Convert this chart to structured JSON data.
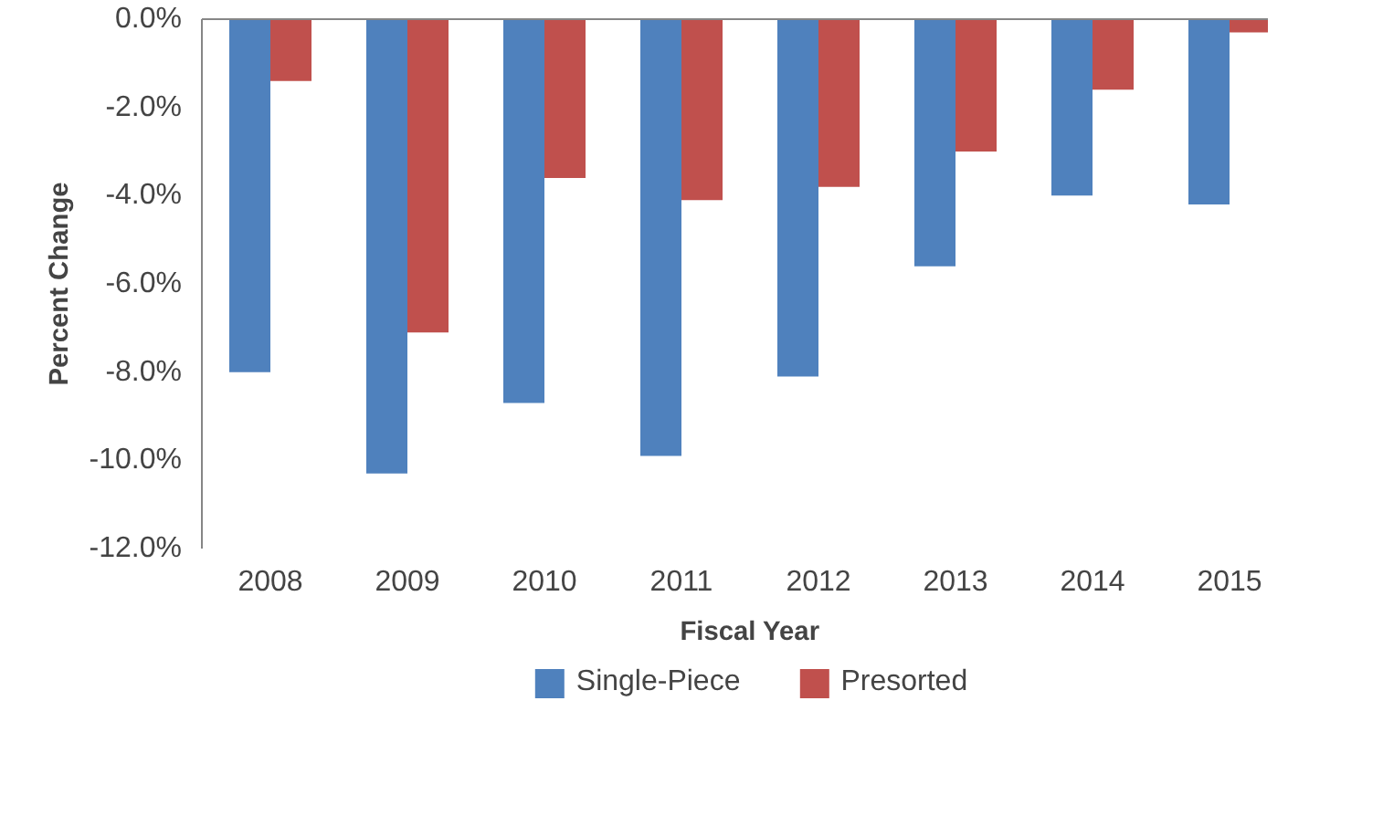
{
  "chart_data": {
    "type": "bar",
    "xlabel": "Fiscal Year",
    "ylabel": "Percent Change",
    "categories": [
      "2008",
      "2009",
      "2010",
      "2011",
      "2012",
      "2013",
      "2014",
      "2015"
    ],
    "series": [
      {
        "name": "Single-Piece",
        "color": "#4f81bd",
        "values": [
          -8.0,
          -10.3,
          -8.7,
          -9.9,
          -8.1,
          -5.6,
          -4.0,
          -4.2
        ]
      },
      {
        "name": "Presorted",
        "color": "#c0504d",
        "values": [
          -1.4,
          -7.1,
          -3.6,
          -4.1,
          -3.8,
          -3.0,
          -1.6,
          -0.3
        ]
      }
    ],
    "ylim": [
      -12,
      0
    ],
    "yticks": [
      {
        "value": -12,
        "label": "-12.0%"
      },
      {
        "value": -10,
        "label": "-10.0%"
      },
      {
        "value": -8,
        "label": "-8.0%"
      },
      {
        "value": -6,
        "label": "-6.0%"
      },
      {
        "value": -4,
        "label": "-4.0%"
      },
      {
        "value": -2,
        "label": "-2.0%"
      },
      {
        "value": 0,
        "label": "0.0%"
      }
    ],
    "grid": false,
    "legend": "bottom"
  }
}
